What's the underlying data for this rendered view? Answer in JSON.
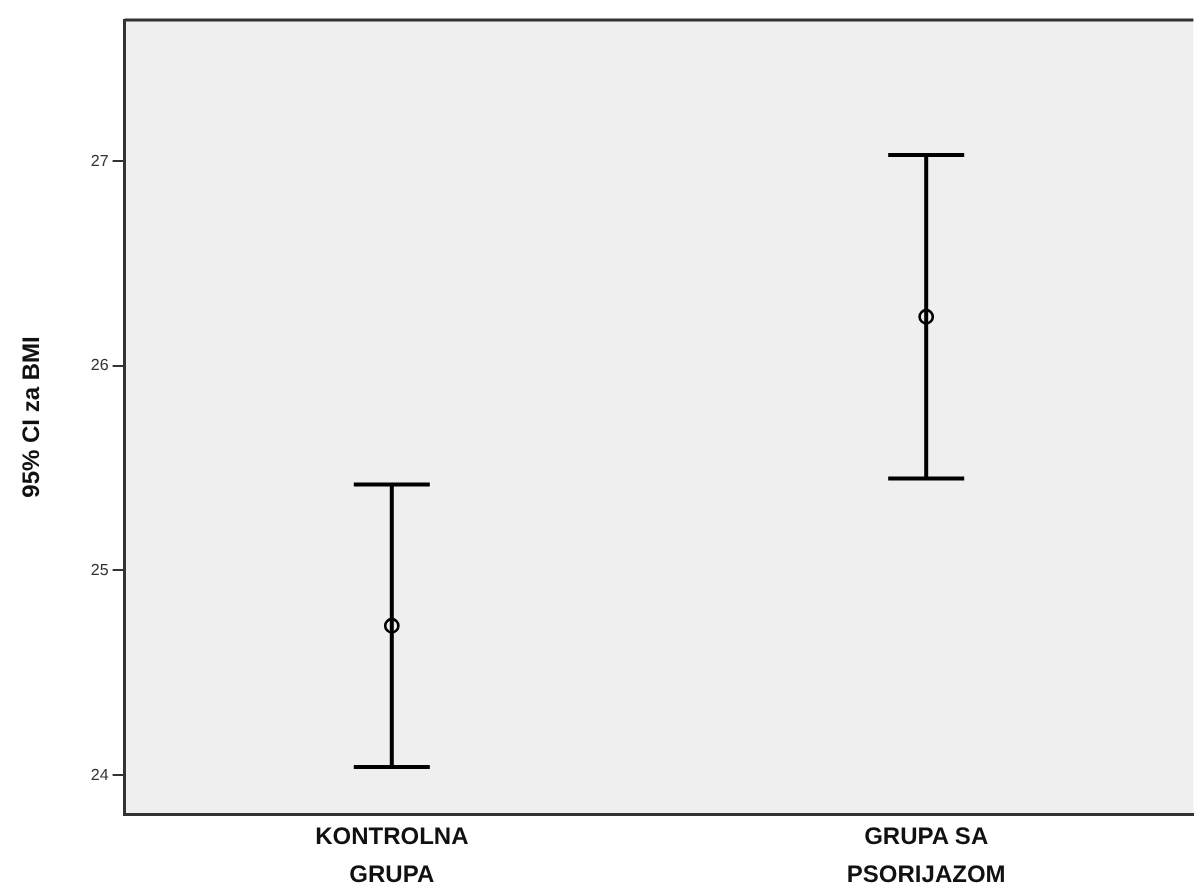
{
  "chart_data": {
    "type": "scatter",
    "ylabel": "95% CI za BMI",
    "categories": [
      "KONTROLNA GRUPA",
      "GRUPA SA PSORIJAZOM"
    ],
    "values": [
      24.73,
      26.24
    ],
    "errors": [
      0.69,
      0.79
    ],
    "color": "#000000",
    "marker": "circle",
    "ylim": [
      23.81,
      27.69
    ],
    "yticks": [
      24,
      25,
      26,
      27
    ],
    "grid": false,
    "legend": false
  }
}
